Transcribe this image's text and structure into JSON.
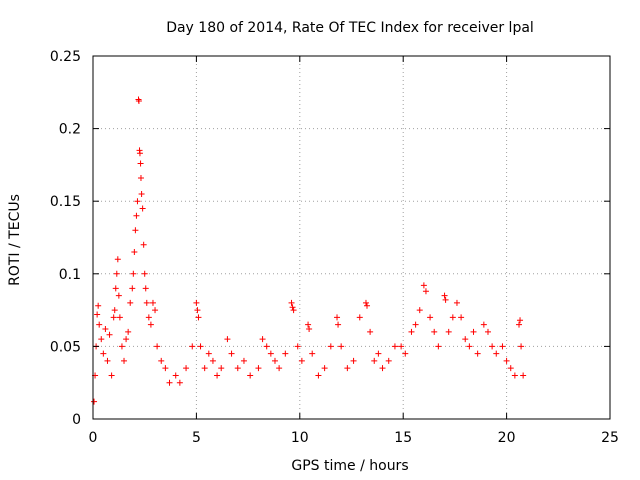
{
  "chart_data": {
    "type": "scatter",
    "title": "Day 180 of 2014, Rate Of TEC Index for receiver lpal",
    "xlabel": "GPS time / hours",
    "ylabel": "ROTI / TECUs",
    "xlim": [
      0,
      25
    ],
    "ylim": [
      0,
      0.25
    ],
    "x_ticks": [
      0,
      5,
      10,
      15,
      20,
      25
    ],
    "y_ticks": [
      0,
      0.05,
      0.1,
      0.15,
      0.2,
      0.25
    ],
    "x_tick_labels": [
      "0",
      "5",
      "10",
      "15",
      "20",
      "25"
    ],
    "y_tick_labels": [
      "0",
      "0.05",
      "0.1",
      "0.15",
      "0.2",
      "0.25"
    ],
    "grid": true,
    "marker": "+",
    "series": [
      {
        "name": "ROTI",
        "color": "#ff0000",
        "points": [
          [
            0.05,
            0.012
          ],
          [
            0.1,
            0.03
          ],
          [
            0.15,
            0.05
          ],
          [
            0.2,
            0.072
          ],
          [
            0.25,
            0.078
          ],
          [
            0.3,
            0.065
          ],
          [
            0.4,
            0.055
          ],
          [
            0.5,
            0.045
          ],
          [
            0.6,
            0.062
          ],
          [
            0.7,
            0.04
          ],
          [
            0.8,
            0.058
          ],
          [
            0.9,
            0.03
          ],
          [
            1.0,
            0.07
          ],
          [
            1.05,
            0.075
          ],
          [
            1.1,
            0.09
          ],
          [
            1.15,
            0.1
          ],
          [
            1.2,
            0.11
          ],
          [
            1.25,
            0.085
          ],
          [
            1.3,
            0.07
          ],
          [
            1.4,
            0.05
          ],
          [
            1.5,
            0.04
          ],
          [
            1.6,
            0.055
          ],
          [
            1.7,
            0.06
          ],
          [
            1.8,
            0.08
          ],
          [
            1.9,
            0.09
          ],
          [
            1.95,
            0.1
          ],
          [
            2.0,
            0.115
          ],
          [
            2.05,
            0.13
          ],
          [
            2.1,
            0.14
          ],
          [
            2.15,
            0.15
          ],
          [
            2.2,
            0.22
          ],
          [
            2.22,
            0.219
          ],
          [
            2.25,
            0.185
          ],
          [
            2.27,
            0.183
          ],
          [
            2.3,
            0.176
          ],
          [
            2.32,
            0.166
          ],
          [
            2.35,
            0.155
          ],
          [
            2.4,
            0.145
          ],
          [
            2.45,
            0.12
          ],
          [
            2.5,
            0.1
          ],
          [
            2.55,
            0.09
          ],
          [
            2.6,
            0.08
          ],
          [
            2.7,
            0.07
          ],
          [
            2.8,
            0.065
          ],
          [
            2.9,
            0.08
          ],
          [
            3.0,
            0.075
          ],
          [
            3.1,
            0.05
          ],
          [
            3.3,
            0.04
          ],
          [
            3.5,
            0.035
          ],
          [
            3.7,
            0.025
          ],
          [
            4.0,
            0.03
          ],
          [
            4.2,
            0.025
          ],
          [
            4.5,
            0.035
          ],
          [
            4.8,
            0.05
          ],
          [
            5.0,
            0.08
          ],
          [
            5.05,
            0.075
          ],
          [
            5.1,
            0.07
          ],
          [
            5.2,
            0.05
          ],
          [
            5.4,
            0.035
          ],
          [
            5.6,
            0.045
          ],
          [
            5.8,
            0.04
          ],
          [
            6.0,
            0.03
          ],
          [
            6.2,
            0.035
          ],
          [
            6.5,
            0.055
          ],
          [
            6.7,
            0.045
          ],
          [
            7.0,
            0.035
          ],
          [
            7.3,
            0.04
          ],
          [
            7.6,
            0.03
          ],
          [
            8.0,
            0.035
          ],
          [
            8.2,
            0.055
          ],
          [
            8.4,
            0.05
          ],
          [
            8.6,
            0.045
          ],
          [
            8.8,
            0.04
          ],
          [
            9.0,
            0.035
          ],
          [
            9.3,
            0.045
          ],
          [
            9.6,
            0.08
          ],
          [
            9.65,
            0.077
          ],
          [
            9.7,
            0.075
          ],
          [
            9.9,
            0.05
          ],
          [
            10.1,
            0.04
          ],
          [
            10.4,
            0.065
          ],
          [
            10.45,
            0.062
          ],
          [
            10.6,
            0.045
          ],
          [
            10.9,
            0.03
          ],
          [
            11.2,
            0.035
          ],
          [
            11.5,
            0.05
          ],
          [
            11.8,
            0.07
          ],
          [
            11.85,
            0.065
          ],
          [
            12.0,
            0.05
          ],
          [
            12.3,
            0.035
          ],
          [
            12.6,
            0.04
          ],
          [
            12.9,
            0.07
          ],
          [
            13.2,
            0.08
          ],
          [
            13.25,
            0.078
          ],
          [
            13.4,
            0.06
          ],
          [
            13.6,
            0.04
          ],
          [
            13.8,
            0.045
          ],
          [
            14.0,
            0.035
          ],
          [
            14.3,
            0.04
          ],
          [
            14.6,
            0.05
          ],
          [
            14.9,
            0.05
          ],
          [
            15.1,
            0.045
          ],
          [
            15.4,
            0.06
          ],
          [
            15.6,
            0.065
          ],
          [
            15.8,
            0.075
          ],
          [
            16.0,
            0.092
          ],
          [
            16.1,
            0.088
          ],
          [
            16.3,
            0.07
          ],
          [
            16.5,
            0.06
          ],
          [
            16.7,
            0.05
          ],
          [
            17.0,
            0.085
          ],
          [
            17.05,
            0.082
          ],
          [
            17.2,
            0.06
          ],
          [
            17.4,
            0.07
          ],
          [
            17.6,
            0.08
          ],
          [
            17.8,
            0.07
          ],
          [
            18.0,
            0.055
          ],
          [
            18.2,
            0.05
          ],
          [
            18.4,
            0.06
          ],
          [
            18.6,
            0.045
          ],
          [
            18.9,
            0.065
          ],
          [
            19.1,
            0.06
          ],
          [
            19.3,
            0.05
          ],
          [
            19.5,
            0.045
          ],
          [
            19.8,
            0.05
          ],
          [
            20.0,
            0.04
          ],
          [
            20.2,
            0.035
          ],
          [
            20.4,
            0.03
          ],
          [
            20.6,
            0.065
          ],
          [
            20.65,
            0.068
          ],
          [
            20.7,
            0.05
          ],
          [
            20.8,
            0.03
          ]
        ]
      }
    ]
  }
}
